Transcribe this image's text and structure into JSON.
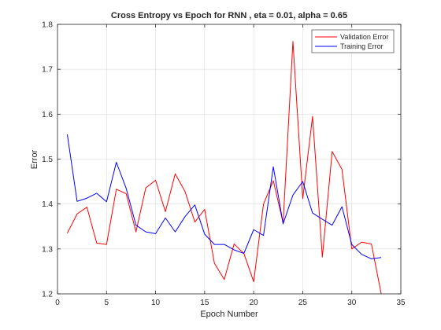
{
  "chart_data": {
    "type": "line",
    "title": "Cross Entropy vs Epoch for RNN , eta = 0.01, alpha = 0.65",
    "xlabel": "Epoch Number",
    "ylabel": "Error",
    "xlim": [
      0,
      35
    ],
    "ylim": [
      1.2,
      1.8
    ],
    "xticks": [
      0,
      5,
      10,
      15,
      20,
      25,
      30,
      35
    ],
    "xtick_labels": [
      "0",
      "5",
      "10",
      "15",
      "20",
      "25",
      "30",
      "35"
    ],
    "yticks": [
      1.2,
      1.3,
      1.4,
      1.5,
      1.6,
      1.7,
      1.8
    ],
    "ytick_labels": [
      "1.2",
      "1.3",
      "1.4",
      "1.5",
      "1.6",
      "1.7",
      "1.8"
    ],
    "grid": true,
    "legend_position": "top-right",
    "x": [
      1,
      2,
      3,
      4,
      5,
      6,
      7,
      8,
      9,
      10,
      11,
      12,
      13,
      14,
      15,
      16,
      17,
      18,
      19,
      20,
      21,
      22,
      23,
      24,
      25,
      26,
      27,
      28,
      29,
      30,
      31,
      32,
      33
    ],
    "series": [
      {
        "name": "Validation Error",
        "color": "#ff0000",
        "values": [
          1.335,
          1.378,
          1.393,
          1.313,
          1.31,
          1.433,
          1.423,
          1.338,
          1.436,
          1.453,
          1.383,
          1.467,
          1.428,
          1.36,
          1.388,
          1.268,
          1.232,
          1.311,
          1.29,
          1.227,
          1.4,
          1.452,
          1.358,
          1.762,
          1.412,
          1.595,
          1.282,
          1.517,
          1.477,
          1.3,
          1.315,
          1.311,
          1.2
        ]
      },
      {
        "name": "Training Error",
        "color": "#0000ff",
        "values": [
          1.555,
          1.406,
          1.413,
          1.424,
          1.405,
          1.493,
          1.435,
          1.353,
          1.338,
          1.334,
          1.369,
          1.338,
          1.372,
          1.398,
          1.333,
          1.31,
          1.31,
          1.298,
          1.29,
          1.343,
          1.33,
          1.483,
          1.356,
          1.42,
          1.45,
          1.38,
          1.366,
          1.353,
          1.394,
          1.31,
          1.288,
          1.278,
          1.281
        ]
      }
    ]
  }
}
